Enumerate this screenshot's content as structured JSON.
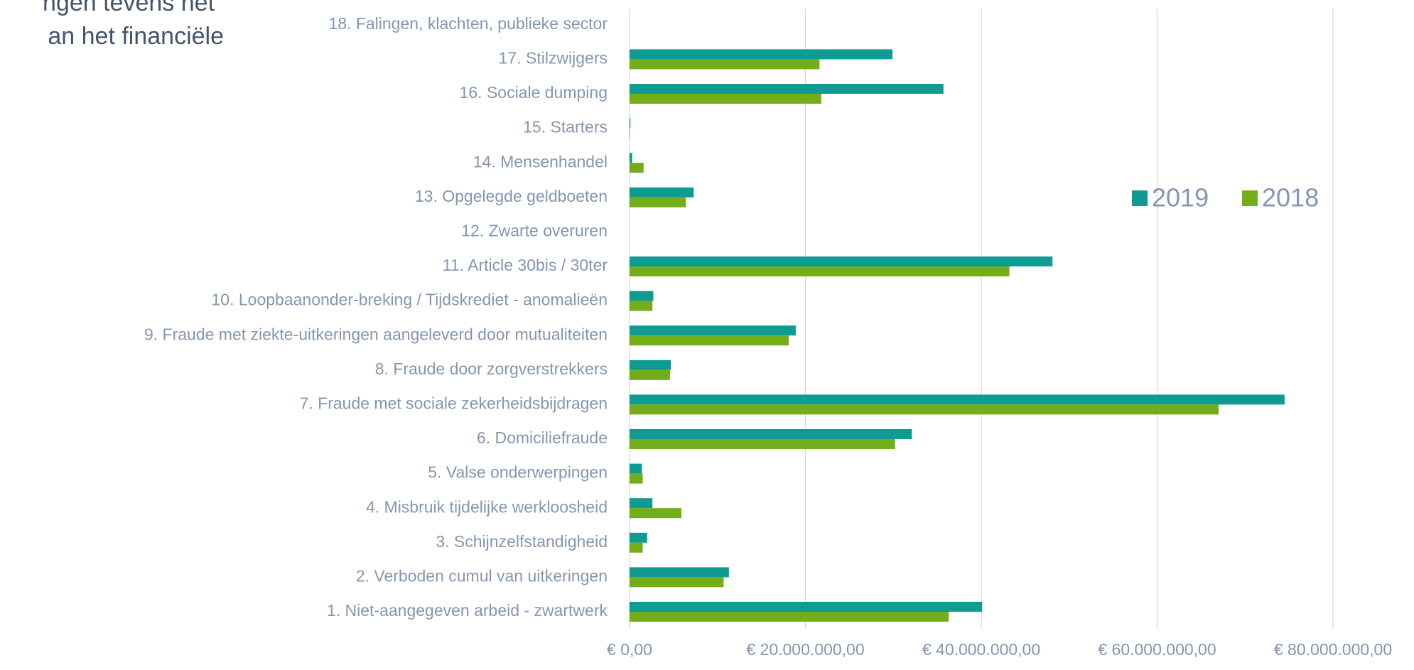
{
  "chart_data": {
    "type": "bar",
    "orientation": "horizontal",
    "annotations": [
      "ngen tevens het",
      "an het financiële"
    ],
    "categories": [
      "1. Niet-aangegeven arbeid - zwartwerk",
      "2. Verboden cumul van uitkeringen",
      "3. Schijnzelfstandigheid",
      "4. Misbruik tijdelijke werkloosheid",
      "5. Valse onderwerpingen",
      "6. Domiciliefraude",
      "7. Fraude met sociale zekerheidsbijdragen",
      "8. Fraude door zorgverstrekkers",
      "9. Fraude met ziekte-uitkeringen aangeleverd door mutualiteiten",
      "10. Loopbaanonder-breking / Tijdskrediet - anomalieën",
      "11. Article 30bis / 30ter",
      "12. Zwarte overuren",
      "13. Opgelegde geldboeten",
      "14. Mensenhandel",
      "15. Starters",
      "16. Sociale dumping",
      "17. Stilzwijgers",
      "18. Falingen, klachten, publieke sector"
    ],
    "series": [
      {
        "name": "2019",
        "color": "#0e9b92",
        "values": [
          40100000,
          11300000,
          2000000,
          2600000,
          1400000,
          32100000,
          74500000,
          4700000,
          18900000,
          2700000,
          48100000,
          0,
          7300000,
          300000,
          100000,
          35700000,
          29900000,
          0
        ]
      },
      {
        "name": "2018",
        "color": "#74ad1a",
        "values": [
          36300000,
          10700000,
          1500000,
          5900000,
          1500000,
          30200000,
          67000000,
          4600000,
          18100000,
          2600000,
          43200000,
          0,
          6400000,
          1600000,
          50000,
          21800000,
          21600000,
          0
        ]
      }
    ],
    "xlim": [
      0,
      80000000
    ],
    "xticks": [
      {
        "value": 0,
        "label": "€ 0,00"
      },
      {
        "value": 20000000,
        "label": "€ 20.000.000,00"
      },
      {
        "value": 40000000,
        "label": "€ 40.000.000,00"
      },
      {
        "value": 60000000,
        "label": "€ 60.000.000,00"
      },
      {
        "value": 80000000,
        "label": "€ 80.000.000,00"
      }
    ],
    "grid": true,
    "legend": "right"
  }
}
